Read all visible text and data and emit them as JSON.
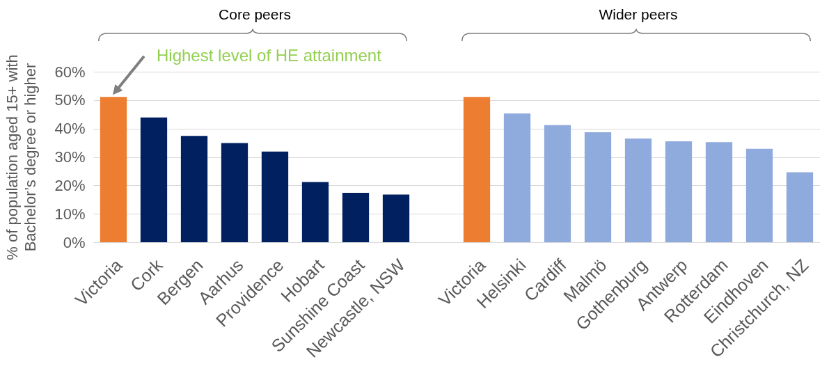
{
  "chart_data": [
    {
      "type": "bar",
      "title": "Core peers",
      "ylabel": "% of population aged 15+ with Bachelor’s degree or higher",
      "categories": [
        "Victoria",
        "Cork",
        "Bergen",
        "Aarhus",
        "Providence",
        "Hobart",
        "Sunshine Coast",
        "Newcastle, NSW"
      ],
      "values": [
        51.1,
        43.9,
        37.4,
        34.9,
        31.9,
        21.2,
        17.4,
        16.8
      ],
      "colors": [
        "#ed7d31",
        "#002060",
        "#002060",
        "#002060",
        "#002060",
        "#002060",
        "#002060",
        "#002060"
      ],
      "ylim": [
        0,
        60
      ],
      "yticks": [
        {
          "value": 0,
          "label": "0%"
        },
        {
          "value": 10,
          "label": "10%"
        },
        {
          "value": 20,
          "label": "20%"
        },
        {
          "value": 30,
          "label": "30%"
        },
        {
          "value": 40,
          "label": "40%"
        },
        {
          "value": 50,
          "label": "50%"
        },
        {
          "value": 60,
          "label": "60%"
        }
      ],
      "grid": "y",
      "annotations": [
        {
          "text": "Highest level of HE attainment",
          "x": "Victoria",
          "y": 51.1
        }
      ]
    },
    {
      "type": "bar",
      "title": "Wider peers",
      "categories": [
        "Victoria",
        "Helsinki",
        "Cardiff",
        "Malmö",
        "Gothenburg",
        "Antwerp",
        "Rotterdam",
        "Eindhoven",
        "Christchurch, NZ"
      ],
      "values": [
        51.1,
        45.3,
        41.2,
        38.7,
        36.5,
        35.5,
        35.2,
        32.9,
        24.6
      ],
      "colors": [
        "#ed7d31",
        "#8faadc",
        "#8faadc",
        "#8faadc",
        "#8faadc",
        "#8faadc",
        "#8faadc",
        "#8faadc",
        "#8faadc"
      ],
      "ylim": [
        0,
        60
      ],
      "yticks": [
        0,
        10,
        20,
        30,
        40,
        50,
        60
      ],
      "grid": "y",
      "tick_labels": "x"
    }
  ]
}
